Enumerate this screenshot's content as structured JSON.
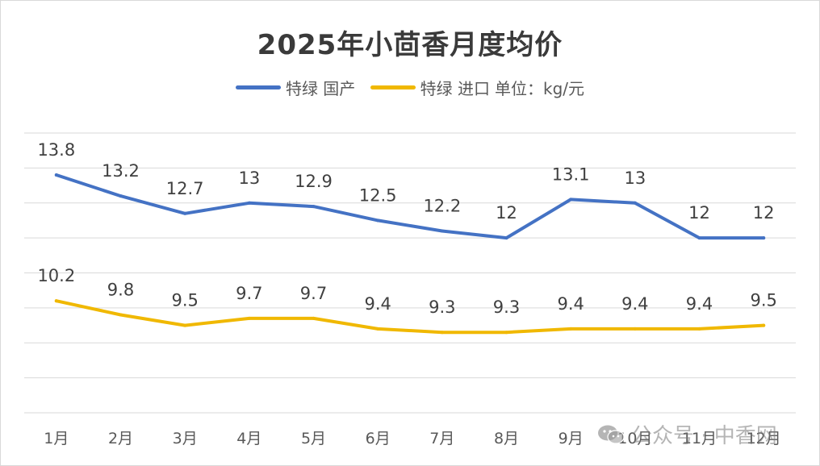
{
  "chart_data": {
    "type": "line",
    "title": "2025年小茴香月度均价",
    "unit_note": "单位：kg/元",
    "categories": [
      "1月",
      "2月",
      "3月",
      "4月",
      "5月",
      "6月",
      "7月",
      "8月",
      "9月",
      "10月",
      "11月",
      "12月"
    ],
    "series": [
      {
        "name": "特绿 国产",
        "color": "#4472c4",
        "values": [
          13.8,
          13.2,
          12.7,
          13,
          12.9,
          12.5,
          12.2,
          12,
          13.1,
          13,
          12,
          12
        ]
      },
      {
        "name": "特绿 进口",
        "color": "#f0b800",
        "values": [
          10.2,
          9.8,
          9.5,
          9.7,
          9.7,
          9.4,
          9.3,
          9.3,
          9.4,
          9.4,
          9.4,
          9.5
        ]
      }
    ],
    "ylim": [
      7,
      15
    ],
    "grid": true,
    "y_axis_labels_shown": false,
    "legend_position": "top"
  },
  "watermark": {
    "text": "公众号 · 中香网",
    "icon": "wechat-icon"
  }
}
